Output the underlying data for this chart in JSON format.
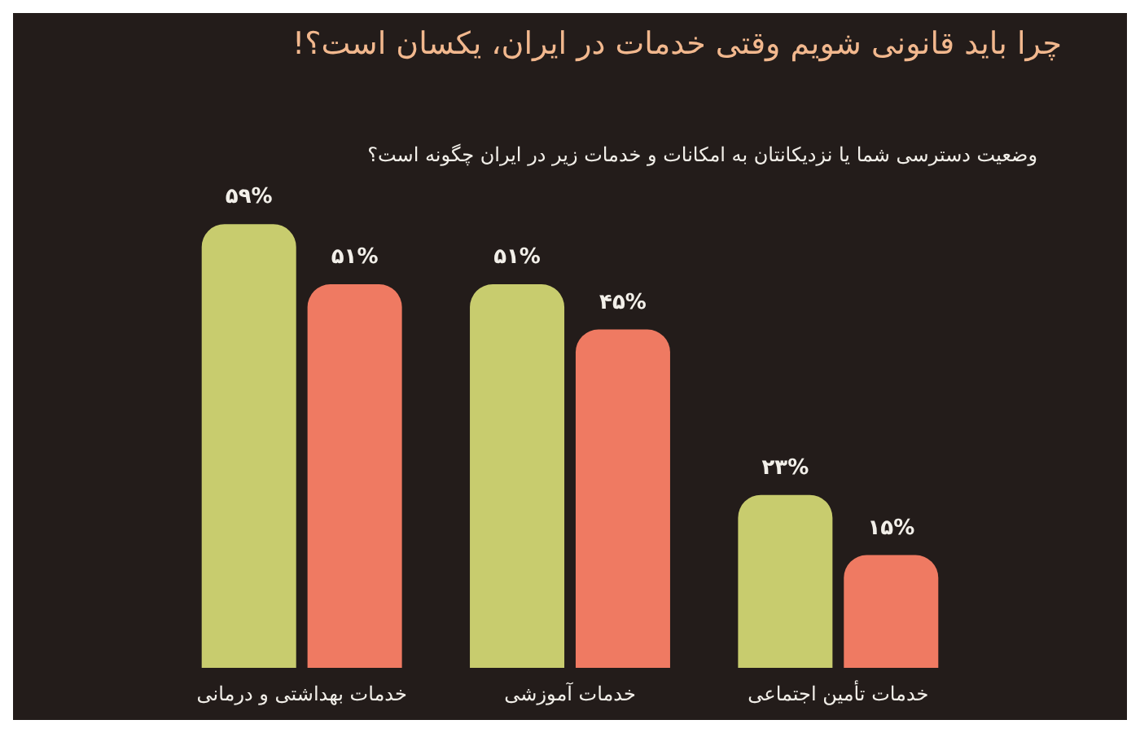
{
  "chart_data": {
    "type": "bar",
    "title": "چرا باید قانونی شویم وقتی خدمات در ایران، یکسان است؟!",
    "subtitle": "وضعیت دسترسی شما یا نزدیکانتان به امکانات و خدمات زیر در ایران چگونه است؟",
    "categories": [
      "خدمات بهداشتی و درمانی",
      "خدمات آموزشی",
      "خدمات تأمین اجتماعی"
    ],
    "series": [
      {
        "color": "#c8cc6e",
        "values": [
          59,
          51,
          23
        ],
        "value_labels": [
          "۵۹%",
          "۵۱%",
          "۲۳%"
        ]
      },
      {
        "color": "#ef7a62",
        "values": [
          51,
          45,
          15
        ],
        "value_labels": [
          "۵۱%",
          "۴۵%",
          "۱۵%"
        ]
      }
    ],
    "tick_labels": "x"
  }
}
